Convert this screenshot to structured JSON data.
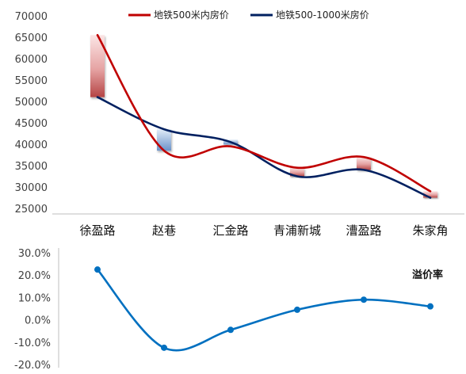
{
  "chart_data": [
    {
      "type": "line",
      "categories": [
        "徐盈路",
        "赵巷",
        "汇金路",
        "青浦新城",
        "漕盈路",
        "朱家角"
      ],
      "series": [
        {
          "name": "地铁500米内房价",
          "values": [
            65500,
            38500,
            39500,
            34500,
            37000,
            29000
          ],
          "color": "#c00000"
        },
        {
          "name": "地铁500-1000米房价",
          "values": [
            51000,
            43500,
            40500,
            32500,
            34000,
            27500
          ],
          "color": "#002060"
        }
      ],
      "yticks": [
        "70000",
        "65000",
        "60000",
        "55000",
        "50000",
        "45000",
        "40000",
        "35000",
        "30000",
        "25000"
      ],
      "ylim": [
        25000,
        70000
      ],
      "legend": "top",
      "grid": false,
      "gap_colors": {
        "positive": "#c00000",
        "negative": "#4472c4"
      }
    },
    {
      "type": "line",
      "categories": [
        "徐盈路",
        "赵巷",
        "汇金路",
        "青浦新城",
        "漕盈路",
        "朱家角"
      ],
      "series": [
        {
          "name": "溢价率",
          "values": [
            22.5,
            -12.5,
            -4.5,
            4.5,
            9.0,
            6.0
          ],
          "color": "#0070c0"
        }
      ],
      "yticks": [
        "30.0%",
        "20.0%",
        "10.0%",
        "0.0%",
        "-10.0%",
        "-20.0%"
      ],
      "ylim": [
        -20,
        30
      ],
      "label": "溢价率",
      "grid": false
    }
  ]
}
